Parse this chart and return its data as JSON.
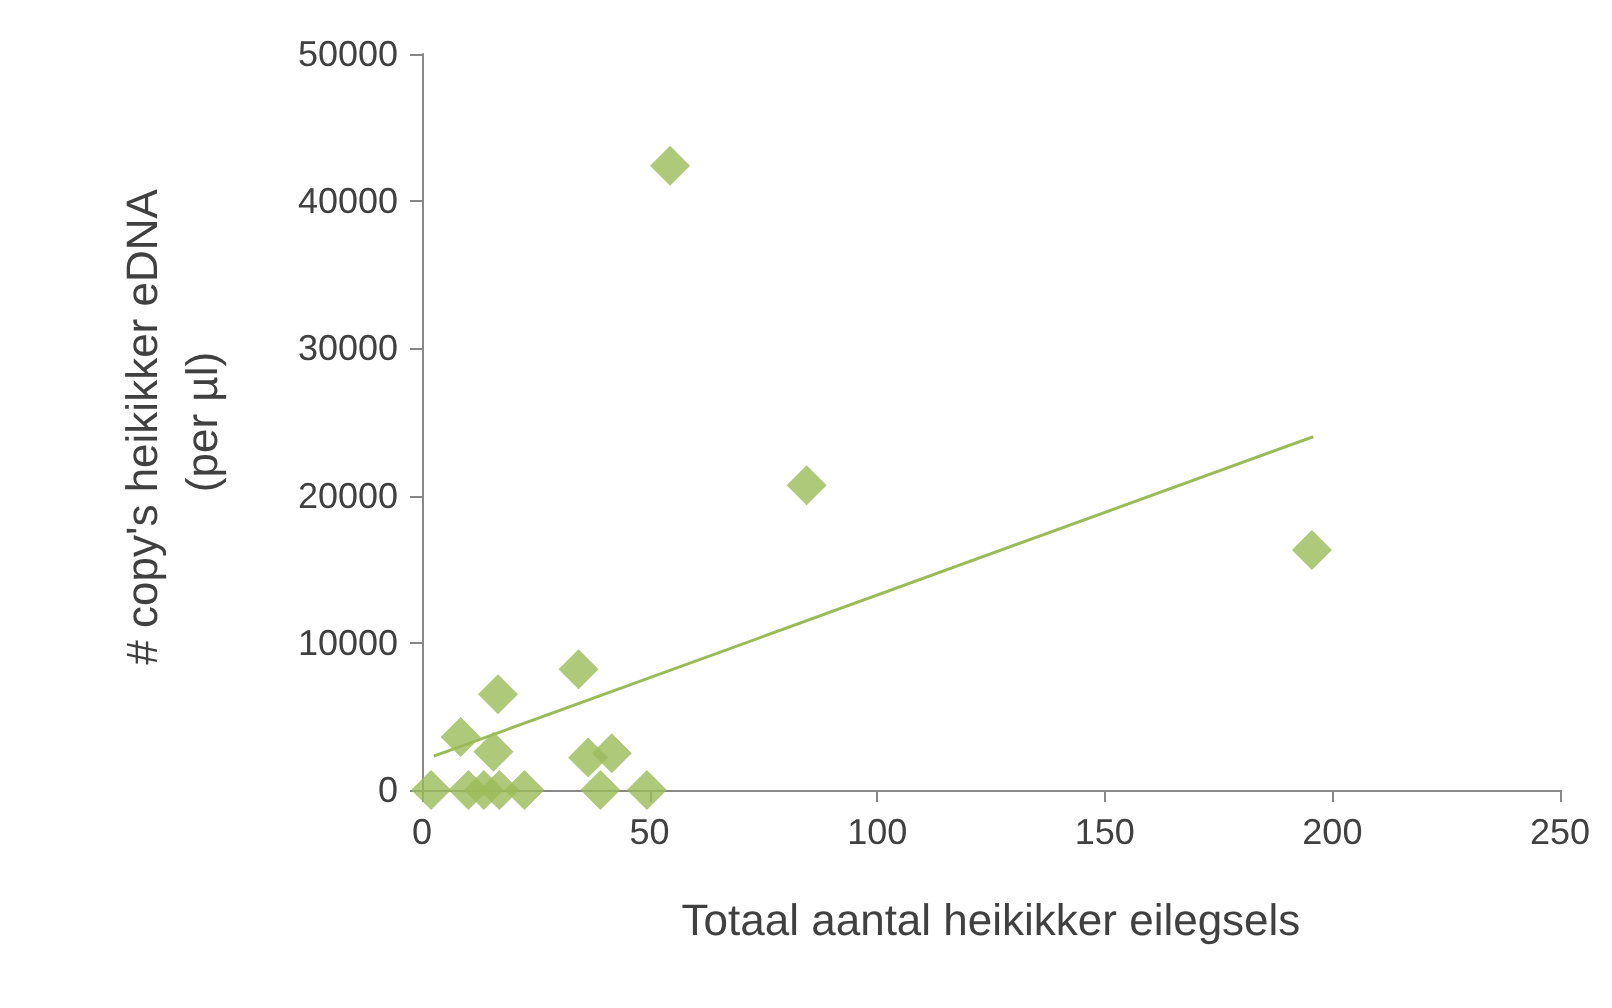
{
  "chart_data": {
    "type": "scatter",
    "xlabel": "Totaal aantal heikikker eilegsels",
    "ylabel": "# copy's heikikker eDNA (per µl)",
    "xlim": [
      0,
      250
    ],
    "xticks": [
      0,
      50,
      100,
      150,
      200,
      250
    ],
    "ylim": [
      0,
      50000
    ],
    "yticks": [
      0,
      10000,
      20000,
      30000,
      40000,
      50000
    ],
    "grid": false,
    "marker": "diamond",
    "series": [
      {
        "color": "#9bbb59",
        "x": [
          54.5,
          84.5,
          195.5,
          34.4,
          16.7,
          8.5,
          15.7,
          36.5,
          41.7,
          2,
          10.2,
          13.6,
          17,
          22.5,
          39.2,
          49.4
        ],
        "values": [
          42400,
          20700,
          16300,
          8200,
          6500,
          3600,
          2600,
          2200,
          2500,
          0,
          0,
          0,
          0,
          0,
          0,
          0
        ]
      },
      {
        "type": "line",
        "color": "#9bbb59",
        "marker": "none",
        "x": [
          2.6,
          195.8
        ],
        "values": [
          2300,
          24000
        ]
      }
    ]
  }
}
